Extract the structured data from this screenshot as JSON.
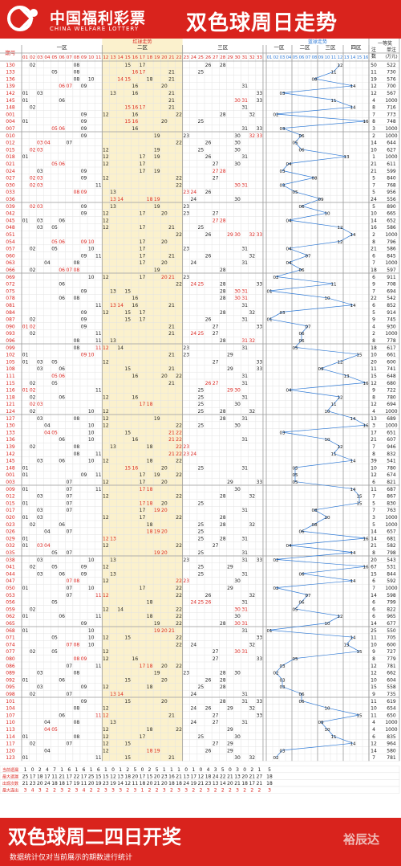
{
  "header": {
    "brand_cn": "中国福利彩票",
    "brand_en": "CHINA WELFARE LOTTERY",
    "title": "双色球周日走势"
  },
  "table": {
    "col_period": "期号",
    "red_header": "红球走势",
    "red_zones": [
      "一区",
      "二区",
      "三区"
    ],
    "blue_header": "蓝球走势",
    "blue_zones": [
      "一区",
      "二区",
      "三区",
      "四区"
    ],
    "prize_header": "一等奖",
    "col_count": "注数",
    "col_amount": "单注(万元)",
    "stats_labels": [
      "当前遗漏",
      "最大遗漏",
      "出现次数",
      "最大连出"
    ],
    "stats": [
      [
        1,
        0,
        2,
        4,
        7,
        1,
        6,
        1,
        6,
        1,
        6,
        1,
        0,
        1,
        2,
        5,
        0,
        2,
        5,
        1,
        1,
        1,
        0,
        1,
        0,
        4,
        3,
        5,
        0,
        3,
        0,
        2,
        1,
        5
      ],
      [
        25,
        17,
        18,
        17,
        11,
        21,
        17,
        22,
        17,
        25,
        15,
        15,
        12,
        13,
        18,
        20,
        17,
        15,
        20,
        23,
        16,
        21,
        13,
        17,
        12,
        18,
        24,
        22,
        21,
        13,
        20,
        21,
        27,
        18
      ],
      [
        21,
        23,
        20,
        24,
        18,
        18,
        17,
        19,
        11,
        20,
        19,
        23,
        19,
        14,
        12,
        11,
        18,
        20,
        21,
        20,
        18,
        18,
        24,
        19,
        21,
        23,
        13,
        14,
        20,
        21,
        18,
        17,
        21,
        18
      ],
      [
        3,
        4,
        3,
        2,
        2,
        3,
        2,
        3,
        4,
        2,
        2,
        3,
        3,
        3,
        2,
        3,
        1,
        2,
        2,
        3,
        2,
        3,
        3,
        2,
        2,
        3,
        2,
        2,
        2,
        3,
        2,
        2,
        2,
        3
      ]
    ]
  },
  "rows": [
    {
      "p": "130",
      "r": [
        2,
        8,
        15,
        17,
        26,
        28
      ],
      "b": 12,
      "n": "50",
      "a": "522"
    },
    {
      "p": "133",
      "r": [
        5,
        8,
        16,
        17,
        21,
        25
      ],
      "b": 11,
      "n": "11",
      "a": "730"
    },
    {
      "p": "136",
      "r": [
        8,
        10,
        14,
        15,
        18,
        21
      ],
      "b": 8,
      "n": "19",
      "a": "576"
    },
    {
      "p": "139",
      "r": [
        6,
        7,
        9,
        16,
        20,
        31
      ],
      "b": 14,
      "n": "12",
      "a": "700"
    },
    {
      "p": "142",
      "r": [
        1,
        3,
        13,
        16,
        21,
        33
      ],
      "b": 3,
      "n": "12",
      "a": "567"
    },
    {
      "p": "145",
      "r": [
        1,
        6,
        21,
        30,
        31,
        33
      ],
      "b": 11,
      "n": "4",
      "a": "1000"
    },
    {
      "p": "148",
      "r": [
        2,
        15,
        16,
        17,
        21,
        31
      ],
      "b": 14,
      "n": "8",
      "a": "716"
    },
    {
      "p": "001",
      "r": [
        9,
        12,
        16,
        22,
        28,
        32
      ],
      "b": 2,
      "n": "7",
      "a": "773"
    },
    {
      "p": "004",
      "r": [
        1,
        9,
        15,
        16,
        20,
        25
      ],
      "b": 16,
      "n": "8",
      "a": "748"
    },
    {
      "p": "007",
      "r": [
        5,
        6,
        9,
        16,
        31,
        33
      ],
      "b": 3,
      "n": "3",
      "a": "1000"
    },
    {
      "p": "010",
      "r": [
        9,
        19,
        23,
        30,
        32,
        33
      ],
      "b": 6,
      "n": "2",
      "a": "1000"
    },
    {
      "p": "012",
      "r": [
        3,
        4,
        7,
        22,
        26,
        30
      ],
      "b": 5,
      "n": "14",
      "a": "644"
    },
    {
      "p": "015",
      "r": [
        2,
        3,
        12,
        19,
        25,
        30
      ],
      "b": 6,
      "n": "10",
      "a": "627"
    },
    {
      "p": "018",
      "r": [
        1,
        12,
        17,
        19,
        26,
        31
      ],
      "b": 13,
      "n": "1",
      "a": "1000"
    },
    {
      "p": "021",
      "r": [
        5,
        6,
        12,
        17,
        27,
        30
      ],
      "b": 4,
      "n": "21",
      "a": "611"
    },
    {
      "p": "024",
      "r": [
        3,
        9,
        17,
        19,
        27,
        28
      ],
      "b": 3,
      "n": "21",
      "a": "599"
    },
    {
      "p": "027",
      "r": [
        2,
        3,
        9,
        12,
        22,
        27
      ],
      "b": 8,
      "n": "5",
      "a": "840"
    },
    {
      "p": "030",
      "r": [
        2,
        3,
        11,
        22,
        30,
        31
      ],
      "b": 3,
      "n": "7",
      "a": "768"
    },
    {
      "p": "033",
      "r": [
        8,
        9,
        13,
        23,
        24,
        26
      ],
      "b": 5,
      "n": "5",
      "a": "956"
    },
    {
      "p": "036",
      "r": [
        13,
        14,
        18,
        19,
        24,
        30
      ],
      "b": 9,
      "n": "24",
      "a": "556"
    },
    {
      "p": "039",
      "r": [
        2,
        3,
        9,
        13,
        19,
        23
      ],
      "b": 6,
      "n": "5",
      "a": "890"
    },
    {
      "p": "042",
      "r": [
        9,
        12,
        17,
        20,
        23,
        27
      ],
      "b": 10,
      "n": "10",
      "a": "665"
    },
    {
      "p": "045",
      "r": [
        1,
        3,
        6,
        12,
        27,
        28
      ],
      "b": 4,
      "n": "14",
      "a": "652"
    },
    {
      "p": "048",
      "r": [
        3,
        5,
        12,
        17,
        21,
        25
      ],
      "b": 12,
      "n": "16",
      "a": "586"
    },
    {
      "p": "051",
      "r": [
        22,
        26,
        29,
        30,
        32,
        33
      ],
      "b": 14,
      "n": "2",
      "a": "1000"
    },
    {
      "p": "054",
      "r": [
        5,
        6,
        9,
        10,
        17,
        20
      ],
      "b": 12,
      "n": "8",
      "a": "796"
    },
    {
      "p": "057",
      "r": [
        2,
        5,
        10,
        17,
        23,
        31
      ],
      "b": 4,
      "n": "21",
      "a": "586"
    },
    {
      "p": "060",
      "r": [
        9,
        11,
        17,
        21,
        26,
        32
      ],
      "b": 7,
      "n": "6",
      "a": "845"
    },
    {
      "p": "063",
      "r": [
        4,
        8,
        17,
        20,
        24,
        31
      ],
      "b": 4,
      "n": "7",
      "a": "1000"
    },
    {
      "p": "066",
      "r": [
        2,
        6,
        7,
        8,
        19,
        28
      ],
      "b": 6,
      "n": "18",
      "a": "597"
    },
    {
      "p": "069",
      "r": [
        10,
        12,
        17,
        20,
        21,
        23
      ],
      "b": 2,
      "n": "6",
      "a": "911"
    },
    {
      "p": "072",
      "r": [
        6,
        22,
        24,
        25,
        28,
        33
      ],
      "b": 11,
      "n": "9",
      "a": "708"
    },
    {
      "p": "075",
      "r": [
        9,
        13,
        15,
        28,
        30,
        31
      ],
      "b": 1,
      "n": "7",
      "a": "694"
    },
    {
      "p": "078",
      "r": [
        6,
        8,
        16,
        28,
        30,
        31
      ],
      "b": 10,
      "n": "22",
      "a": "542"
    },
    {
      "p": "081",
      "r": [
        11,
        13,
        14,
        16,
        21,
        31
      ],
      "b": 14,
      "n": "6",
      "a": "852"
    },
    {
      "p": "084",
      "r": [
        9,
        12,
        15,
        17,
        28,
        32
      ],
      "b": 3,
      "n": "5",
      "a": "914"
    },
    {
      "p": "087",
      "r": [
        2,
        9,
        15,
        17,
        26,
        31
      ],
      "b": 1,
      "n": "9",
      "a": "745"
    },
    {
      "p": "090",
      "r": [
        1,
        2,
        9,
        21,
        27,
        33
      ],
      "b": 7,
      "n": "4",
      "a": "930"
    },
    {
      "p": "093",
      "r": [
        2,
        11,
        21,
        24,
        25,
        27
      ],
      "b": 6,
      "n": "2",
      "a": "1000"
    },
    {
      "p": "096",
      "r": [
        8,
        11,
        13,
        28,
        31,
        32
      ],
      "b": 6,
      "n": "8",
      "a": "778"
    },
    {
      "p": "099",
      "r": [
        8,
        11,
        12,
        14,
        23,
        31
      ],
      "b": 5,
      "n": "18",
      "a": "617"
    },
    {
      "p": "102",
      "r": [
        1,
        9,
        10,
        21,
        23,
        29
      ],
      "b": 15,
      "n": "10",
      "a": "661"
    },
    {
      "p": "105",
      "r": [
        1,
        3,
        5,
        12,
        27,
        33
      ],
      "b": 12,
      "n": "20",
      "a": "600"
    },
    {
      "p": "108",
      "r": [
        3,
        6,
        15,
        21,
        29,
        33
      ],
      "b": 9,
      "n": "11",
      "a": "741"
    },
    {
      "p": "111",
      "r": [
        5,
        6,
        16,
        20,
        22,
        31
      ],
      "b": 13,
      "n": "15",
      "a": "648"
    },
    {
      "p": "115",
      "r": [
        2,
        5,
        21,
        26,
        27,
        31
      ],
      "b": 16,
      "n": "12",
      "a": "680"
    },
    {
      "p": "116",
      "r": [
        1,
        2,
        11,
        25,
        29,
        30
      ],
      "b": 4,
      "n": "9",
      "a": "722"
    },
    {
      "p": "118",
      "r": [
        2,
        6,
        12,
        16,
        25,
        31
      ],
      "b": 12,
      "n": "8",
      "a": "780"
    },
    {
      "p": "121",
      "r": [
        2,
        3,
        17,
        18,
        25,
        30
      ],
      "b": 11,
      "n": "12",
      "a": "694"
    },
    {
      "p": "124",
      "r": [
        2,
        10,
        12,
        25,
        28,
        32
      ],
      "b": 10,
      "n": "4",
      "a": "1000"
    },
    {
      "p": "127",
      "r": [
        3,
        8,
        12,
        19,
        28,
        31
      ],
      "b": 14,
      "n": "13",
      "a": "689"
    },
    {
      "p": "130",
      "r": [
        4,
        10,
        12,
        22,
        25,
        30
      ],
      "b": 16,
      "n": "3",
      "a": "1000"
    },
    {
      "p": "133",
      "r": [
        4,
        5,
        10,
        15,
        21,
        22
      ],
      "b": 3,
      "n": "17",
      "a": "651"
    },
    {
      "p": "136",
      "r": [
        6,
        10,
        16,
        21,
        22,
        31
      ],
      "b": 10,
      "n": "21",
      "a": "607"
    },
    {
      "p": "139",
      "r": [
        2,
        8,
        13,
        18,
        22,
        23
      ],
      "b": 12,
      "n": "7",
      "a": "946"
    },
    {
      "p": "142",
      "r": [
        8,
        11,
        21,
        22,
        23,
        24
      ],
      "b": 11,
      "n": "8",
      "a": "832"
    },
    {
      "p": "145",
      "r": [
        3,
        6,
        10,
        12,
        18,
        22
      ],
      "b": 14,
      "n": "39",
      "a": "541"
    },
    {
      "p": "148",
      "r": [
        1,
        15,
        16,
        20,
        25,
        31
      ],
      "b": 5,
      "n": "10",
      "a": "780"
    },
    {
      "p": "001",
      "r": [
        1,
        9,
        11,
        17,
        19,
        22
      ],
      "b": 5,
      "n": "12",
      "a": "674"
    },
    {
      "p": "003",
      "r": [
        7,
        12,
        17,
        20,
        29,
        33
      ],
      "b": 5,
      "n": "6",
      "a": "821"
    },
    {
      "p": "009",
      "r": [
        1,
        7,
        11,
        17,
        18,
        30
      ],
      "b": 14,
      "n": "11",
      "a": "687"
    },
    {
      "p": "012",
      "r": [
        3,
        7,
        12,
        22,
        28,
        32
      ],
      "b": 15,
      "n": "7",
      "a": "867"
    },
    {
      "p": "015",
      "r": [
        1,
        7,
        17,
        18,
        20,
        25
      ],
      "b": 15,
      "n": "5",
      "a": "830"
    },
    {
      "p": "017",
      "r": [
        3,
        7,
        17,
        19,
        20,
        31
      ],
      "b": 8,
      "n": "7",
      "a": "763"
    },
    {
      "p": "020",
      "r": [
        1,
        3,
        12,
        17,
        22,
        28
      ],
      "b": 10,
      "n": "3",
      "a": "1000"
    },
    {
      "p": "023",
      "r": [
        2,
        6,
        18,
        25,
        28,
        32
      ],
      "b": 8,
      "n": "5",
      "a": "1000"
    },
    {
      "p": "026",
      "r": [
        4,
        7,
        18,
        19,
        20,
        25
      ],
      "b": 6,
      "n": "14",
      "a": "657"
    },
    {
      "p": "029",
      "r": [
        1,
        12,
        13,
        25,
        28,
        31
      ],
      "b": 16,
      "n": "14",
      "a": "681"
    },
    {
      "p": "032",
      "r": [
        1,
        3,
        4,
        12,
        22,
        27
      ],
      "b": 4,
      "n": "21",
      "a": "582"
    },
    {
      "p": "035",
      "r": [
        5,
        7,
        19,
        20,
        25,
        31
      ],
      "b": 14,
      "n": "8",
      "a": "798"
    },
    {
      "p": "038",
      "r": [
        3,
        10,
        13,
        23,
        31,
        33
      ],
      "b": 2,
      "n": "20",
      "a": "543"
    },
    {
      "p": "041",
      "r": [
        2,
        5,
        9,
        12,
        25,
        29
      ],
      "b": 16,
      "n": "67",
      "a": "531"
    },
    {
      "p": "044",
      "r": [
        3,
        6,
        9,
        13,
        25,
        31
      ],
      "b": 6,
      "n": "15",
      "a": "844"
    },
    {
      "p": "047",
      "r": [
        7,
        8,
        12,
        22,
        23,
        30
      ],
      "b": 14,
      "n": "6",
      "a": "592"
    },
    {
      "p": "050",
      "r": [
        1,
        7,
        10,
        17,
        22,
        29
      ],
      "b": 2,
      "n": "7",
      "a": "1000"
    },
    {
      "p": "053",
      "r": [
        7,
        11,
        12,
        22,
        26,
        32
      ],
      "b": 7,
      "n": "14",
      "a": "598"
    },
    {
      "p": "056",
      "r": [
        5,
        18,
        24,
        25,
        26,
        31
      ],
      "b": 6,
      "n": "6",
      "a": "799"
    },
    {
      "p": "059",
      "r": [
        2,
        12,
        14,
        22,
        30,
        31
      ],
      "b": 5,
      "n": "6",
      "a": "822"
    },
    {
      "p": "062",
      "r": [
        1,
        6,
        11,
        18,
        22,
        30
      ],
      "b": 12,
      "n": "6",
      "a": "965"
    },
    {
      "p": "065",
      "r": [
        9,
        19,
        22,
        28,
        30,
        31
      ],
      "b": 10,
      "n": "14",
      "a": "677"
    },
    {
      "p": "068",
      "r": [
        1,
        10,
        19,
        20,
        21,
        31
      ],
      "b": 1,
      "n": "25",
      "a": "550"
    },
    {
      "p": "071",
      "r": [
        5,
        10,
        12,
        15,
        22,
        33
      ],
      "b": 14,
      "n": "11",
      "a": "705"
    },
    {
      "p": "074",
      "r": [
        7,
        8,
        10,
        22,
        24,
        32
      ],
      "b": 13,
      "n": "10",
      "a": "600"
    },
    {
      "p": "077",
      "r": [
        2,
        5,
        12,
        27,
        30,
        31
      ],
      "b": 15,
      "n": "9",
      "a": "727"
    },
    {
      "p": "080",
      "r": [
        8,
        9,
        12,
        16,
        27,
        33
      ],
      "b": 5,
      "n": "8",
      "a": "779"
    },
    {
      "p": "086",
      "r": [
        7,
        11,
        17,
        18,
        20,
        22
      ],
      "b": 3,
      "n": "12",
      "a": "781"
    },
    {
      "p": "089",
      "r": [
        3,
        8,
        19,
        23,
        28,
        30
      ],
      "b": 2,
      "n": "12",
      "a": "662"
    },
    {
      "p": "092",
      "r": [
        1,
        6,
        15,
        20,
        26,
        28
      ],
      "b": 3,
      "n": "10",
      "a": "604"
    },
    {
      "p": "095",
      "r": [
        3,
        9,
        12,
        18,
        25,
        28
      ],
      "b": 3,
      "n": "15",
      "a": "558"
    },
    {
      "p": "098",
      "r": [
        2,
        7,
        13,
        14,
        24,
        31
      ],
      "b": 6,
      "n": "9",
      "a": "735"
    },
    {
      "p": "101",
      "r": [
        9,
        15,
        20,
        28,
        31,
        33
      ],
      "b": 6,
      "n": "11",
      "a": "619"
    },
    {
      "p": "104",
      "r": [
        8,
        12,
        24,
        26,
        29,
        32
      ],
      "b": 10,
      "n": "10",
      "a": "654"
    },
    {
      "p": "107",
      "r": [
        6,
        11,
        12,
        21,
        27,
        33
      ],
      "b": 15,
      "n": "11",
      "a": "650"
    },
    {
      "p": "110",
      "r": [
        4,
        8,
        13,
        24,
        27,
        31
      ],
      "b": 9,
      "n": "4",
      "a": "1000"
    },
    {
      "p": "113",
      "r": [
        4,
        5,
        12,
        18,
        22,
        29
      ],
      "b": 10,
      "n": "4",
      "a": "1000"
    },
    {
      "p": "114",
      "r": [
        1,
        8,
        12,
        17,
        25,
        30
      ],
      "b": 11,
      "n": "6",
      "a": "835"
    },
    {
      "p": "117",
      "r": [
        2,
        7,
        12,
        15,
        27,
        29
      ],
      "b": 14,
      "n": "12",
      "a": "964"
    },
    {
      "p": "120",
      "r": [
        4,
        12,
        18,
        19,
        26,
        29
      ],
      "b": 3,
      "n": "14",
      "a": "580"
    },
    {
      "p": "123",
      "r": [
        1,
        11,
        15,
        21,
        30,
        32
      ],
      "b": 2,
      "n": "7",
      "a": "781"
    }
  ],
  "footer": {
    "title": "双色球周二四日开奖",
    "note": "数据统计仅对当前展示的期数进行统计",
    "watermark": "裕辰达"
  },
  "colors": {
    "brand_red": "#d9231d",
    "red_zone_bg": "#fbf1cd",
    "blue_line": "#2f7ad6",
    "hit_red": "#d9231d",
    "grid": "#e3e3e3"
  }
}
